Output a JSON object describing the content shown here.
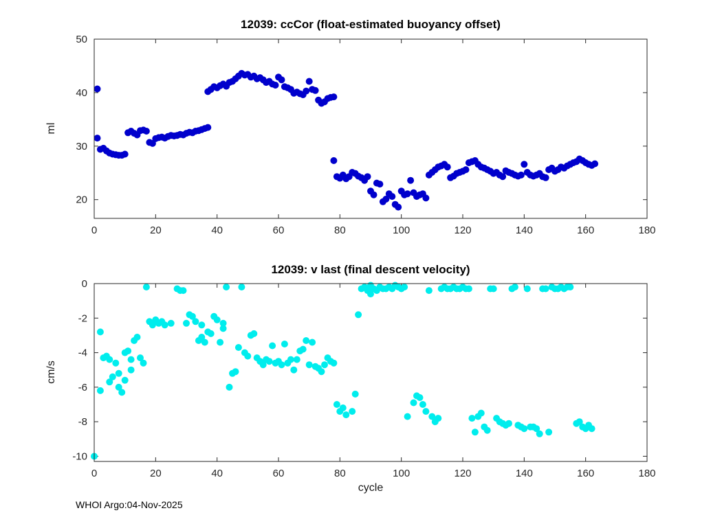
{
  "figure": {
    "background": "#ffffff"
  },
  "style": {
    "axis_color": "#262626",
    "tick_label_color": "#262626"
  },
  "footer": {
    "text": "WHOI Argo:04-Nov-2025"
  },
  "chart_data": [
    {
      "type": "scatter",
      "title": "12039: ccCor (float-estimated buoyancy offset)",
      "xlabel": "",
      "ylabel": "ml",
      "xlim": [
        0,
        180
      ],
      "ylim": [
        16.5,
        50
      ],
      "xticks": [
        0,
        20,
        40,
        60,
        80,
        100,
        120,
        140,
        160,
        180
      ],
      "yticks": [
        20,
        30,
        40,
        50
      ],
      "grid": false,
      "legend": "none",
      "marker_color": "#0000cc",
      "points": [
        [
          1,
          40.7
        ],
        [
          1,
          31.5
        ],
        [
          2,
          29.4
        ],
        [
          3,
          29.6
        ],
        [
          4,
          29.1
        ],
        [
          5,
          28.7
        ],
        [
          6,
          28.5
        ],
        [
          7,
          28.4
        ],
        [
          8,
          28.3
        ],
        [
          9,
          28.3
        ],
        [
          10,
          28.5
        ],
        [
          11,
          32.5
        ],
        [
          12,
          32.8
        ],
        [
          13,
          32.4
        ],
        [
          14,
          32.1
        ],
        [
          15,
          32.9
        ],
        [
          16,
          33.0
        ],
        [
          17,
          32.8
        ],
        [
          18,
          30.7
        ],
        [
          19,
          30.5
        ],
        [
          20,
          31.4
        ],
        [
          21,
          31.6
        ],
        [
          22,
          31.7
        ],
        [
          23,
          31.5
        ],
        [
          24,
          31.8
        ],
        [
          25,
          32.0
        ],
        [
          26,
          31.9
        ],
        [
          27,
          32.0
        ],
        [
          28,
          32.2
        ],
        [
          29,
          32.1
        ],
        [
          30,
          32.4
        ],
        [
          31,
          32.6
        ],
        [
          32,
          32.5
        ],
        [
          33,
          32.8
        ],
        [
          34,
          32.9
        ],
        [
          35,
          33.1
        ],
        [
          36,
          33.3
        ],
        [
          37,
          33.5
        ],
        [
          37,
          40.2
        ],
        [
          38,
          40.6
        ],
        [
          39,
          41.1
        ],
        [
          40,
          40.9
        ],
        [
          41,
          41.3
        ],
        [
          42,
          41.6
        ],
        [
          43,
          41.2
        ],
        [
          44,
          41.9
        ],
        [
          45,
          42.1
        ],
        [
          46,
          42.6
        ],
        [
          47,
          43.1
        ],
        [
          48,
          43.6
        ],
        [
          49,
          43.3
        ],
        [
          50,
          43.4
        ],
        [
          51,
          42.9
        ],
        [
          52,
          43.1
        ],
        [
          53,
          42.6
        ],
        [
          54,
          42.8
        ],
        [
          55,
          42.4
        ],
        [
          56,
          41.9
        ],
        [
          57,
          42.1
        ],
        [
          58,
          41.6
        ],
        [
          59,
          41.4
        ],
        [
          60,
          42.9
        ],
        [
          61,
          42.4
        ],
        [
          62,
          41.1
        ],
        [
          63,
          40.9
        ],
        [
          64,
          40.6
        ],
        [
          65,
          39.9
        ],
        [
          66,
          40.1
        ],
        [
          67,
          39.8
        ],
        [
          68,
          39.6
        ],
        [
          69,
          40.3
        ],
        [
          70,
          42.1
        ],
        [
          71,
          40.6
        ],
        [
          72,
          40.4
        ],
        [
          73,
          38.6
        ],
        [
          74,
          38.0
        ],
        [
          75,
          38.3
        ],
        [
          76,
          38.9
        ],
        [
          77,
          39.1
        ],
        [
          78,
          39.2
        ],
        [
          78,
          27.3
        ],
        [
          79,
          24.3
        ],
        [
          80,
          24.0
        ],
        [
          81,
          24.6
        ],
        [
          82,
          23.9
        ],
        [
          83,
          24.3
        ],
        [
          84,
          25.1
        ],
        [
          85,
          24.9
        ],
        [
          86,
          24.4
        ],
        [
          87,
          24.1
        ],
        [
          88,
          23.6
        ],
        [
          89,
          24.3
        ],
        [
          90,
          21.6
        ],
        [
          91,
          20.9
        ],
        [
          92,
          23.1
        ],
        [
          93,
          22.9
        ],
        [
          94,
          19.6
        ],
        [
          95,
          20.1
        ],
        [
          96,
          21.1
        ],
        [
          97,
          20.6
        ],
        [
          98,
          19.1
        ],
        [
          99,
          18.6
        ],
        [
          100,
          21.6
        ],
        [
          101,
          20.9
        ],
        [
          102,
          21.1
        ],
        [
          103,
          23.6
        ],
        [
          104,
          21.3
        ],
        [
          105,
          20.6
        ],
        [
          106,
          20.9
        ],
        [
          107,
          21.1
        ],
        [
          108,
          20.3
        ],
        [
          109,
          24.6
        ],
        [
          110,
          25.1
        ],
        [
          111,
          25.6
        ],
        [
          112,
          26.1
        ],
        [
          113,
          26.3
        ],
        [
          114,
          26.6
        ],
        [
          115,
          26.1
        ],
        [
          116,
          24.1
        ],
        [
          117,
          24.4
        ],
        [
          118,
          24.9
        ],
        [
          119,
          25.1
        ],
        [
          120,
          25.3
        ],
        [
          121,
          25.6
        ],
        [
          122,
          26.9
        ],
        [
          123,
          27.1
        ],
        [
          124,
          27.3
        ],
        [
          125,
          26.6
        ],
        [
          126,
          26.1
        ],
        [
          127,
          25.9
        ],
        [
          128,
          25.6
        ],
        [
          129,
          25.3
        ],
        [
          130,
          24.9
        ],
        [
          131,
          25.1
        ],
        [
          132,
          24.6
        ],
        [
          133,
          24.3
        ],
        [
          134,
          25.4
        ],
        [
          135,
          25.1
        ],
        [
          136,
          24.9
        ],
        [
          137,
          24.6
        ],
        [
          138,
          24.4
        ],
        [
          139,
          24.6
        ],
        [
          140,
          26.6
        ],
        [
          141,
          25.1
        ],
        [
          142,
          24.6
        ],
        [
          143,
          24.4
        ],
        [
          144,
          24.6
        ],
        [
          145,
          24.9
        ],
        [
          146,
          24.3
        ],
        [
          147,
          24.1
        ],
        [
          148,
          25.6
        ],
        [
          149,
          25.9
        ],
        [
          150,
          25.3
        ],
        [
          151,
          25.6
        ],
        [
          152,
          26.1
        ],
        [
          153,
          25.9
        ],
        [
          154,
          26.3
        ],
        [
          155,
          26.6
        ],
        [
          156,
          26.9
        ],
        [
          157,
          27.1
        ],
        [
          158,
          27.6
        ],
        [
          159,
          27.3
        ],
        [
          160,
          26.9
        ],
        [
          161,
          26.6
        ],
        [
          162,
          26.4
        ],
        [
          163,
          26.7
        ]
      ]
    },
    {
      "type": "scatter",
      "title": "12039: v last (final descent velocity)",
      "xlabel": "cycle",
      "ylabel": "cm/s",
      "xlim": [
        0,
        180
      ],
      "ylim": [
        -10.3,
        0
      ],
      "xticks": [
        0,
        20,
        40,
        60,
        80,
        100,
        120,
        140,
        160,
        180
      ],
      "yticks": [
        0,
        -2,
        -4,
        -6,
        -8,
        -10
      ],
      "grid": false,
      "legend": "none",
      "marker_color": "#00eded",
      "points": [
        [
          0,
          -10.0
        ],
        [
          2,
          -2.8
        ],
        [
          2,
          -6.2
        ],
        [
          3,
          -4.3
        ],
        [
          4,
          -4.2
        ],
        [
          5,
          -5.7
        ],
        [
          5,
          -4.4
        ],
        [
          6,
          -5.4
        ],
        [
          7,
          -4.6
        ],
        [
          8,
          -5.2
        ],
        [
          8,
          -6.0
        ],
        [
          9,
          -6.3
        ],
        [
          10,
          -5.6
        ],
        [
          10,
          -4.0
        ],
        [
          11,
          -3.9
        ],
        [
          12,
          -5.0
        ],
        [
          12,
          -4.4
        ],
        [
          13,
          -3.3
        ],
        [
          14,
          -3.1
        ],
        [
          15,
          -4.3
        ],
        [
          16,
          -4.6
        ],
        [
          17,
          -0.2
        ],
        [
          18,
          -2.2
        ],
        [
          19,
          -2.4
        ],
        [
          20,
          -2.1
        ],
        [
          21,
          -2.3
        ],
        [
          22,
          -2.2
        ],
        [
          23,
          -2.4
        ],
        [
          25,
          -2.3
        ],
        [
          27,
          -0.3
        ],
        [
          28,
          -0.4
        ],
        [
          29,
          -0.4
        ],
        [
          30,
          -2.3
        ],
        [
          31,
          -1.8
        ],
        [
          32,
          -1.9
        ],
        [
          33,
          -2.2
        ],
        [
          34,
          -3.3
        ],
        [
          35,
          -3.1
        ],
        [
          35,
          -2.4
        ],
        [
          36,
          -3.4
        ],
        [
          37,
          -2.8
        ],
        [
          38,
          -2.9
        ],
        [
          39,
          -1.9
        ],
        [
          40,
          -2.1
        ],
        [
          41,
          -3.4
        ],
        [
          42,
          -2.3
        ],
        [
          42,
          -2.6
        ],
        [
          43,
          -0.2
        ],
        [
          44,
          -6.0
        ],
        [
          45,
          -5.2
        ],
        [
          46,
          -5.1
        ],
        [
          47,
          -3.7
        ],
        [
          48,
          -0.2
        ],
        [
          49,
          -4.0
        ],
        [
          50,
          -4.2
        ],
        [
          51,
          -3.0
        ],
        [
          52,
          -2.9
        ],
        [
          53,
          -4.3
        ],
        [
          54,
          -4.5
        ],
        [
          55,
          -4.7
        ],
        [
          56,
          -4.4
        ],
        [
          57,
          -4.5
        ],
        [
          58,
          -3.6
        ],
        [
          59,
          -4.6
        ],
        [
          60,
          -4.5
        ],
        [
          61,
          -4.7
        ],
        [
          62,
          -3.5
        ],
        [
          63,
          -4.6
        ],
        [
          64,
          -4.4
        ],
        [
          65,
          -5.0
        ],
        [
          66,
          -4.4
        ],
        [
          67,
          -3.9
        ],
        [
          68,
          -3.8
        ],
        [
          69,
          -3.3
        ],
        [
          70,
          -4.7
        ],
        [
          71,
          -3.4
        ],
        [
          72,
          -4.8
        ],
        [
          73,
          -4.9
        ],
        [
          74,
          -5.1
        ],
        [
          75,
          -4.7
        ],
        [
          76,
          -4.3
        ],
        [
          77,
          -4.5
        ],
        [
          78,
          -4.6
        ],
        [
          79,
          -7.0
        ],
        [
          80,
          -7.4
        ],
        [
          81,
          -7.2
        ],
        [
          82,
          -7.6
        ],
        [
          84,
          -7.4
        ],
        [
          85,
          -6.4
        ],
        [
          86,
          -1.8
        ],
        [
          87,
          -0.3
        ],
        [
          88,
          -0.2
        ],
        [
          89,
          -0.4
        ],
        [
          90,
          -0.1
        ],
        [
          90,
          -0.6
        ],
        [
          91,
          -0.3
        ],
        [
          92,
          -0.4
        ],
        [
          93,
          -0.2
        ],
        [
          94,
          -0.3
        ],
        [
          95,
          -0.3
        ],
        [
          96,
          -0.2
        ],
        [
          97,
          -0.3
        ],
        [
          98,
          -0.1
        ],
        [
          99,
          -0.2
        ],
        [
          100,
          -0.3
        ],
        [
          101,
          -0.2
        ],
        [
          102,
          -7.7
        ],
        [
          104,
          -6.9
        ],
        [
          105,
          -6.5
        ],
        [
          106,
          -6.6
        ],
        [
          107,
          -7.0
        ],
        [
          108,
          -7.4
        ],
        [
          109,
          -0.4
        ],
        [
          110,
          -7.7
        ],
        [
          111,
          -8.0
        ],
        [
          112,
          -7.8
        ],
        [
          113,
          -0.3
        ],
        [
          114,
          -0.2
        ],
        [
          115,
          -0.3
        ],
        [
          116,
          -0.3
        ],
        [
          117,
          -0.2
        ],
        [
          118,
          -0.3
        ],
        [
          119,
          -0.3
        ],
        [
          120,
          -0.2
        ],
        [
          121,
          -0.3
        ],
        [
          122,
          -0.3
        ],
        [
          123,
          -7.8
        ],
        [
          124,
          -8.6
        ],
        [
          125,
          -7.7
        ],
        [
          126,
          -7.5
        ],
        [
          127,
          -8.3
        ],
        [
          128,
          -8.5
        ],
        [
          129,
          -0.3
        ],
        [
          130,
          -0.3
        ],
        [
          131,
          -7.8
        ],
        [
          132,
          -8.0
        ],
        [
          133,
          -8.1
        ],
        [
          134,
          -8.2
        ],
        [
          135,
          -8.1
        ],
        [
          136,
          -0.3
        ],
        [
          137,
          -0.2
        ],
        [
          138,
          -8.2
        ],
        [
          139,
          -8.3
        ],
        [
          140,
          -8.4
        ],
        [
          141,
          -0.3
        ],
        [
          142,
          -8.3
        ],
        [
          143,
          -8.3
        ],
        [
          144,
          -8.4
        ],
        [
          145,
          -8.7
        ],
        [
          146,
          -0.3
        ],
        [
          147,
          -0.3
        ],
        [
          148,
          -8.6
        ],
        [
          149,
          -0.2
        ],
        [
          150,
          -0.3
        ],
        [
          151,
          -0.3
        ],
        [
          152,
          -0.2
        ],
        [
          153,
          -0.3
        ],
        [
          154,
          -0.2
        ],
        [
          155,
          -0.2
        ],
        [
          157,
          -8.1
        ],
        [
          158,
          -8.0
        ],
        [
          159,
          -8.3
        ],
        [
          160,
          -8.4
        ],
        [
          161,
          -8.2
        ],
        [
          162,
          -8.4
        ]
      ]
    }
  ]
}
